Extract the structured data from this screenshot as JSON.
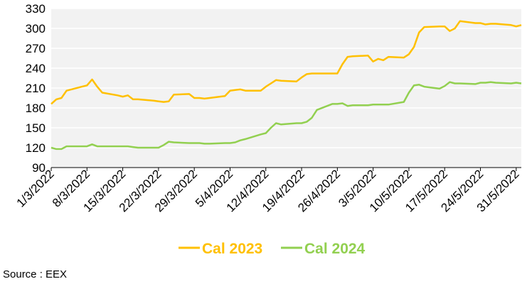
{
  "chart_data": {
    "type": "line",
    "ylim": [
      90,
      330
    ],
    "yticks": [
      90,
      120,
      150,
      180,
      210,
      240,
      270,
      300,
      330
    ],
    "xticks": [
      "1/3/2022",
      "8/3/2022",
      "15/3/2022",
      "22/3/2022",
      "29/3/2022",
      "5/4/2022",
      "12/4/2022",
      "19/4/2022",
      "26/4/2022",
      "3/5/2022",
      "10/5/2022",
      "17/5/2022",
      "24/5/2022",
      "31/5/2022"
    ],
    "x_range": [
      "2022-03-01",
      "2022-06-01"
    ],
    "grid": true,
    "legend_position": "bottom",
    "plot_background": "#f2f2f2",
    "series": [
      {
        "name": "Cal 2023",
        "color": "#ffc000",
        "x": [
          "2022-03-01",
          "2022-03-02",
          "2022-03-03",
          "2022-03-04",
          "2022-03-07",
          "2022-03-08",
          "2022-03-09",
          "2022-03-10",
          "2022-03-11",
          "2022-03-14",
          "2022-03-15",
          "2022-03-16",
          "2022-03-17",
          "2022-03-18",
          "2022-03-21",
          "2022-03-22",
          "2022-03-23",
          "2022-03-24",
          "2022-03-25",
          "2022-03-28",
          "2022-03-29",
          "2022-03-30",
          "2022-03-31",
          "2022-04-01",
          "2022-04-04",
          "2022-04-05",
          "2022-04-06",
          "2022-04-07",
          "2022-04-08",
          "2022-04-11",
          "2022-04-12",
          "2022-04-13",
          "2022-04-14",
          "2022-04-15",
          "2022-04-18",
          "2022-04-19",
          "2022-04-20",
          "2022-04-21",
          "2022-04-22",
          "2022-04-25",
          "2022-04-26",
          "2022-04-27",
          "2022-04-28",
          "2022-04-29",
          "2022-05-02",
          "2022-05-03",
          "2022-05-04",
          "2022-05-05",
          "2022-05-06",
          "2022-05-09",
          "2022-05-10",
          "2022-05-11",
          "2022-05-12",
          "2022-05-13",
          "2022-05-16",
          "2022-05-17",
          "2022-05-18",
          "2022-05-19",
          "2022-05-20",
          "2022-05-23",
          "2022-05-24",
          "2022-05-25",
          "2022-05-26",
          "2022-05-27",
          "2022-05-30",
          "2022-05-31",
          "2022-06-01"
        ],
        "y": [
          186,
          193,
          195,
          206,
          212,
          214,
          223,
          212,
          203,
          199,
          197,
          199,
          193,
          193,
          191,
          190,
          189,
          190,
          200,
          201,
          195,
          195,
          194,
          195,
          198,
          206,
          207,
          208,
          206,
          206,
          212,
          217,
          222,
          221,
          220,
          226,
          231,
          232,
          232,
          232,
          232,
          246,
          257,
          258,
          259,
          250,
          254,
          252,
          257,
          256,
          261,
          272,
          294,
          302,
          303,
          303,
          296,
          300,
          311,
          308,
          308,
          306,
          307,
          307,
          305,
          303,
          305
        ]
      },
      {
        "name": "Cal 2024",
        "color": "#92d050",
        "x": [
          "2022-03-01",
          "2022-03-02",
          "2022-03-03",
          "2022-03-04",
          "2022-03-07",
          "2022-03-08",
          "2022-03-09",
          "2022-03-10",
          "2022-03-11",
          "2022-03-14",
          "2022-03-15",
          "2022-03-16",
          "2022-03-17",
          "2022-03-18",
          "2022-03-21",
          "2022-03-22",
          "2022-03-23",
          "2022-03-24",
          "2022-03-25",
          "2022-03-28",
          "2022-03-29",
          "2022-03-30",
          "2022-03-31",
          "2022-04-01",
          "2022-04-04",
          "2022-04-05",
          "2022-04-06",
          "2022-04-07",
          "2022-04-08",
          "2022-04-11",
          "2022-04-12",
          "2022-04-13",
          "2022-04-14",
          "2022-04-15",
          "2022-04-18",
          "2022-04-19",
          "2022-04-20",
          "2022-04-21",
          "2022-04-22",
          "2022-04-25",
          "2022-04-26",
          "2022-04-27",
          "2022-04-28",
          "2022-04-29",
          "2022-05-02",
          "2022-05-03",
          "2022-05-04",
          "2022-05-05",
          "2022-05-06",
          "2022-05-09",
          "2022-05-10",
          "2022-05-11",
          "2022-05-12",
          "2022-05-13",
          "2022-05-16",
          "2022-05-17",
          "2022-05-18",
          "2022-05-19",
          "2022-05-20",
          "2022-05-23",
          "2022-05-24",
          "2022-05-25",
          "2022-05-26",
          "2022-05-27",
          "2022-05-30",
          "2022-05-31",
          "2022-06-01"
        ],
        "y": [
          120,
          118,
          118,
          122,
          122,
          122,
          125,
          122,
          122,
          122,
          122,
          122,
          121,
          120,
          120,
          120,
          124,
          129,
          128,
          127,
          127,
          127,
          126,
          126,
          127,
          127,
          128,
          131,
          133,
          140,
          142,
          150,
          157,
          155,
          157,
          157,
          159,
          165,
          177,
          186,
          186,
          187,
          183,
          184,
          184,
          185,
          185,
          185,
          185,
          189,
          203,
          214,
          215,
          212,
          209,
          213,
          219,
          217,
          217,
          216,
          218,
          218,
          219,
          218,
          217,
          218,
          217
        ]
      }
    ]
  },
  "source": "Source : EEX"
}
